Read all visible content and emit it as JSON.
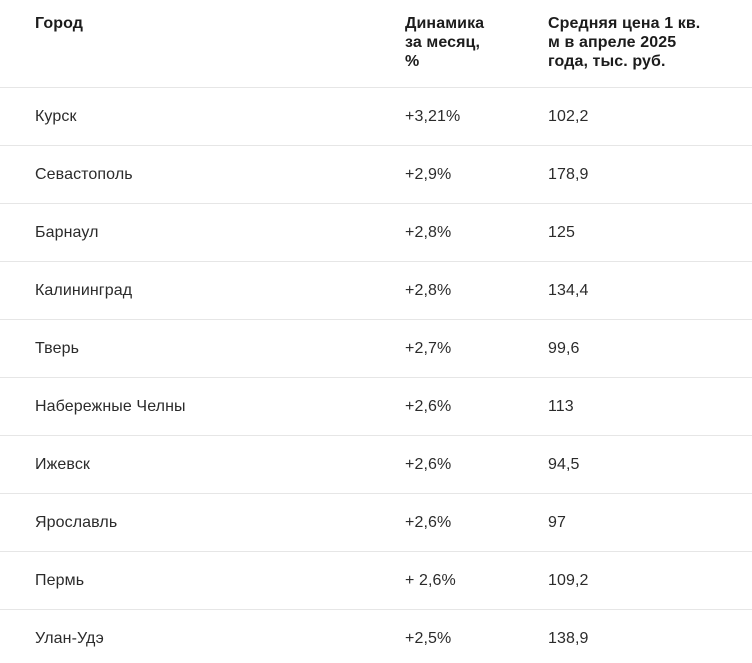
{
  "table": {
    "columns": [
      {
        "label": "Город"
      },
      {
        "label": "Динамика\nза месяц,\n%"
      },
      {
        "label": "Средняя цена 1 кв.\nм в апреле 2025\nгода, тыс. руб."
      }
    ],
    "rows": [
      {
        "city": "Курск",
        "dynamics": "+3,21%",
        "price": "102,2"
      },
      {
        "city": "Севастополь",
        "dynamics": "+2,9%",
        "price": "178,9"
      },
      {
        "city": "Барнаул",
        "dynamics": "+2,8%",
        "price": "125"
      },
      {
        "city": "Калининград",
        "dynamics": "+2,8%",
        "price": "134,4"
      },
      {
        "city": "Тверь",
        "dynamics": "+2,7%",
        "price": "99,6"
      },
      {
        "city": "Набережные Челны",
        "dynamics": "+2,6%",
        "price": "113"
      },
      {
        "city": "Ижевск",
        "dynamics": "+2,6%",
        "price": "94,5"
      },
      {
        "city": "Ярославль",
        "dynamics": "+2,6%",
        "price": "97"
      },
      {
        "city": "Пермь",
        "dynamics": "+ 2,6%",
        "price": "109,2"
      },
      {
        "city": "Улан-Удэ",
        "dynamics": "+2,5%",
        "price": "138,9"
      }
    ]
  },
  "colors": {
    "background": "#ffffff",
    "header_text": "#1c1c1c",
    "row_text": "#2b2b2b",
    "divider": "#e6e6e6"
  }
}
